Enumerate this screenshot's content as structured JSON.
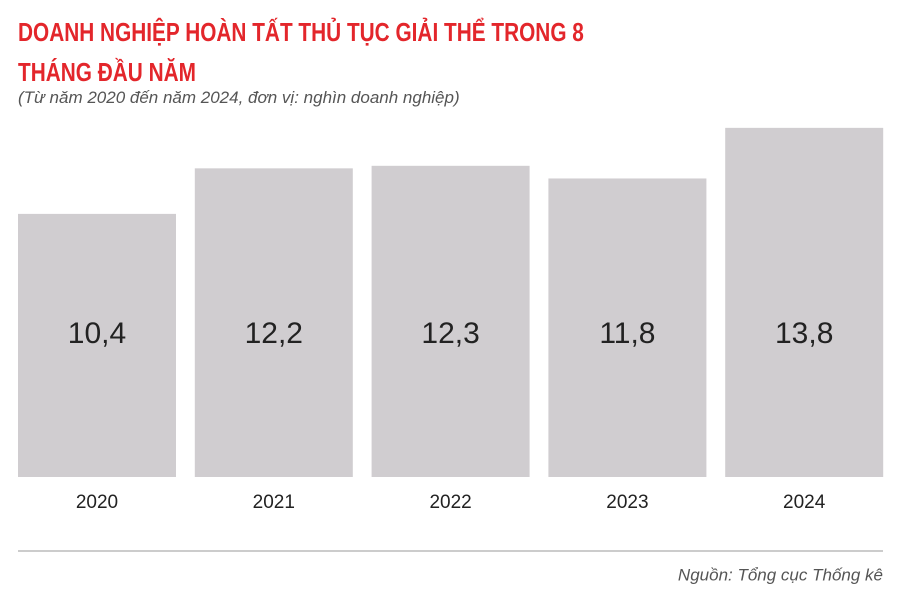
{
  "chart_data": {
    "type": "bar",
    "title": "DOANH NGHIỆP HOÀN TẤT THỦ TỤC GIẢI THỂ TRONG 8 THÁNG ĐẦU NĂM",
    "subtitle": "(Từ năm 2020 đến năm 2024, đơn vị: nghìn doanh nghiệp)",
    "categories": [
      "2020",
      "2021",
      "2022",
      "2023",
      "2024"
    ],
    "values": [
      10.4,
      12.2,
      12.3,
      11.8,
      13.8
    ],
    "value_labels": [
      "10,4",
      "12,2",
      "12,3",
      "11,8",
      "13,8"
    ],
    "color": "#d0cdd0",
    "source": "Nguồn: Tổng cục Thống kê"
  }
}
